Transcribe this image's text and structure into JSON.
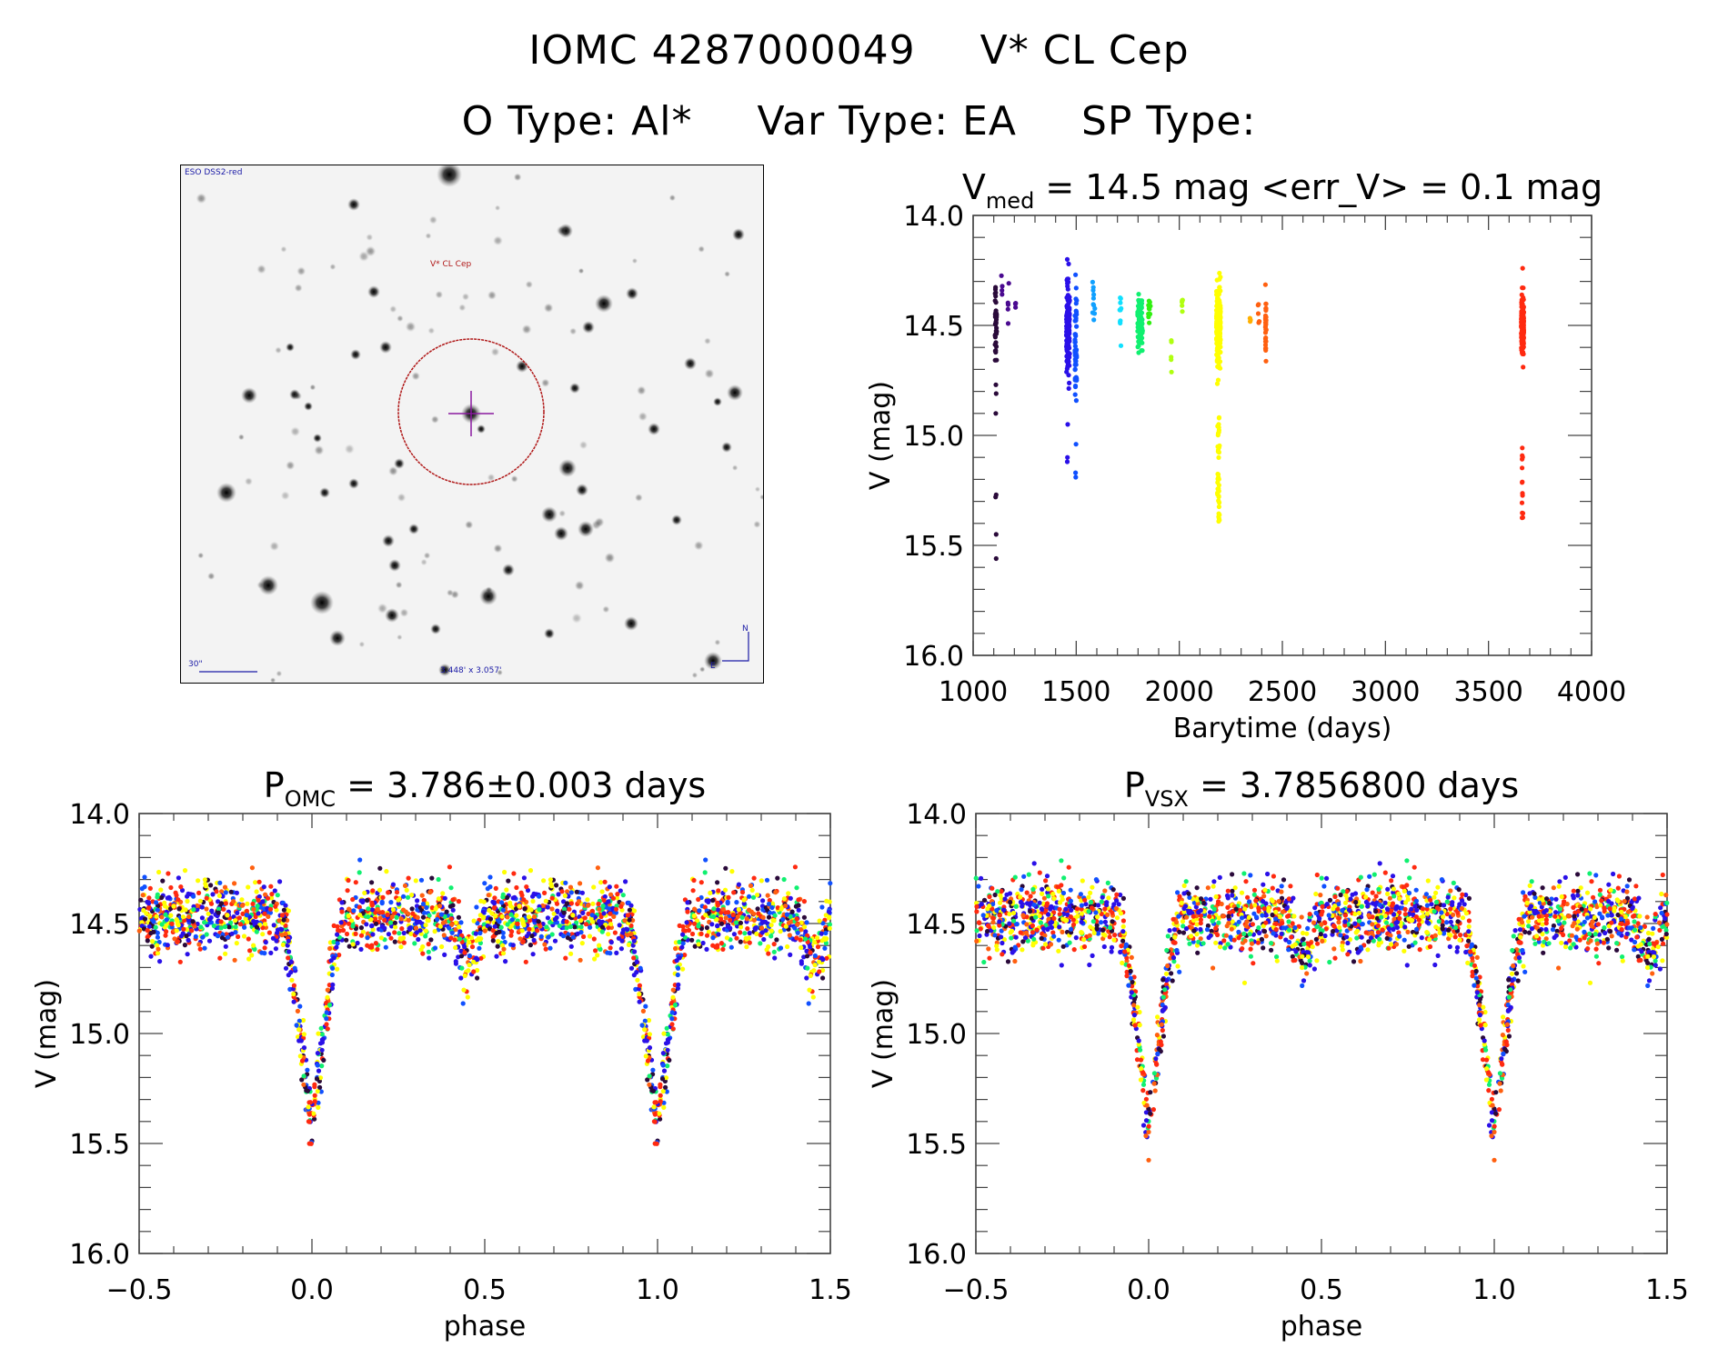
{
  "header": {
    "id_label": "IOMC 4287000049",
    "name_label": "V* CL Cep",
    "line2": [
      "O Type: Al*",
      "Var Type: EA",
      "SP Type:"
    ]
  },
  "finder_chart": {
    "survey": "ESO DSS2-red",
    "target_label": "V* CL Cep",
    "scale_label": "30\"",
    "fov_label": "3.448' x 3.057'",
    "north_label": "N",
    "east_label": "E",
    "circle_color": "#b01818",
    "cross_color": "#8a1aa0"
  },
  "colors": [
    "#2a0a3a",
    "#4a0a90",
    "#2a10e8",
    "#1050ff",
    "#10a0ff",
    "#10e0ff",
    "#10f070",
    "#30f010",
    "#b0ff10",
    "#ffff00",
    "#ffb000",
    "#ff6010",
    "#ff2a10"
  ],
  "chart_data": [
    {
      "type": "scatter",
      "id": "light-curve",
      "title_main": "V",
      "title_sub": "med",
      "title_rest": " = 14.5 mag <err_V> = 0.1 mag",
      "xlabel": "Barytime (days)",
      "ylabel": "V (mag)",
      "xlim": [
        1000,
        4000
      ],
      "ylim": [
        16.0,
        14.0
      ],
      "xticks": [
        1000,
        1500,
        2000,
        2500,
        3000,
        3500,
        4000
      ],
      "yticks": [
        14.0,
        14.5,
        15.0,
        15.5,
        16.0
      ],
      "grid": false,
      "clusters": [
        {
          "x": 1110,
          "xspread": 4,
          "ycenter": 14.5,
          "yspread": 0.12,
          "n": 40,
          "color": 0,
          "outliers": [
            14.9,
            15.27,
            15.28,
            15.45,
            15.56,
            14.77,
            14.81
          ]
        },
        {
          "x": 1140,
          "xspread": 3,
          "ycenter": 14.33,
          "yspread": 0.05,
          "n": 4,
          "color": 1
        },
        {
          "x": 1170,
          "xspread": 3,
          "ycenter": 14.42,
          "yspread": 0.07,
          "n": 5,
          "color": 1
        },
        {
          "x": 1205,
          "xspread": 3,
          "ycenter": 14.4,
          "yspread": 0.04,
          "n": 4,
          "color": 1
        },
        {
          "x": 1460,
          "xspread": 8,
          "ycenter": 14.52,
          "yspread": 0.15,
          "n": 170,
          "color": 2,
          "outliers": [
            14.2,
            15.1,
            15.12,
            14.95
          ]
        },
        {
          "x": 1498,
          "xspread": 4,
          "ycenter": 14.6,
          "yspread": 0.18,
          "n": 50,
          "color": 3,
          "outliers": [
            15.17,
            15.19,
            14.27
          ]
        },
        {
          "x": 1585,
          "xspread": 6,
          "ycenter": 14.4,
          "yspread": 0.08,
          "n": 12,
          "color": 4
        },
        {
          "x": 1715,
          "xspread": 4,
          "ycenter": 14.45,
          "yspread": 0.08,
          "n": 10,
          "color": 5
        },
        {
          "x": 1810,
          "xspread": 12,
          "ycenter": 14.5,
          "yspread": 0.09,
          "n": 80,
          "color": 6
        },
        {
          "x": 1855,
          "xspread": 5,
          "ycenter": 14.44,
          "yspread": 0.05,
          "n": 10,
          "color": 7
        },
        {
          "x": 1960,
          "xspread": 3,
          "ycenter": 14.62,
          "yspread": 0.06,
          "n": 5,
          "color": 8
        },
        {
          "x": 2015,
          "xspread": 3,
          "ycenter": 14.4,
          "yspread": 0.04,
          "n": 5,
          "color": 8
        },
        {
          "x": 2190,
          "xspread": 10,
          "ycenter": 14.5,
          "yspread": 0.12,
          "n": 260,
          "color": 9,
          "tail": {
            "from": 14.85,
            "to": 15.4,
            "n": 40
          }
        },
        {
          "x": 2345,
          "xspread": 3,
          "ycenter": 14.48,
          "yspread": 0.02,
          "n": 3,
          "color": 10
        },
        {
          "x": 2385,
          "xspread": 3,
          "ycenter": 14.45,
          "yspread": 0.05,
          "n": 5,
          "color": 11
        },
        {
          "x": 2420,
          "xspread": 2,
          "ycenter": 14.49,
          "yspread": 0.1,
          "n": 30,
          "color": 11
        },
        {
          "x": 3665,
          "xspread": 6,
          "ycenter": 14.5,
          "yspread": 0.09,
          "n": 200,
          "color": 12,
          "tail": {
            "from": 15.05,
            "to": 15.43,
            "n": 14
          },
          "outliers": [
            14.24
          ]
        }
      ]
    },
    {
      "type": "scatter",
      "id": "phase-omc",
      "title_main": "P",
      "title_sub": "OMC",
      "title_rest": " = 3.786±0.003 days",
      "xlabel": "phase",
      "ylabel": "V (mag)",
      "xlim": [
        -0.5,
        1.5
      ],
      "ylim": [
        16.0,
        14.0
      ],
      "xticks": [
        -0.5,
        0.0,
        0.5,
        1.0,
        1.5
      ],
      "yticks": [
        14.0,
        14.5,
        15.0,
        15.5,
        16.0
      ],
      "grid": false,
      "light_curve_model": {
        "baseline": 14.47,
        "scatter": 0.1,
        "primary_eclipse": {
          "phase": 0.0,
          "depth": 1.0,
          "width": 0.05
        },
        "secondary_eclipse": {
          "phase": 0.45,
          "depth": 0.2,
          "width": 0.025
        },
        "n_points": 1200,
        "seed": 7
      }
    },
    {
      "type": "scatter",
      "id": "phase-vsx",
      "title_main": "P",
      "title_sub": "VSX",
      "title_rest": " = 3.7856800 days",
      "xlabel": "phase",
      "ylabel": "V (mag)",
      "xlim": [
        -0.5,
        1.5
      ],
      "ylim": [
        16.0,
        14.0
      ],
      "xticks": [
        -0.5,
        0.0,
        0.5,
        1.0,
        1.5
      ],
      "yticks": [
        14.0,
        14.5,
        15.0,
        15.5,
        16.0
      ],
      "grid": false,
      "light_curve_model": {
        "baseline": 14.47,
        "scatter": 0.1,
        "primary_eclipse": {
          "phase": 0.0,
          "depth": 1.0,
          "width": 0.05
        },
        "secondary_eclipse": {
          "phase": 0.45,
          "depth": 0.2,
          "width": 0.025
        },
        "n_points": 1200,
        "seed": 11
      }
    }
  ]
}
